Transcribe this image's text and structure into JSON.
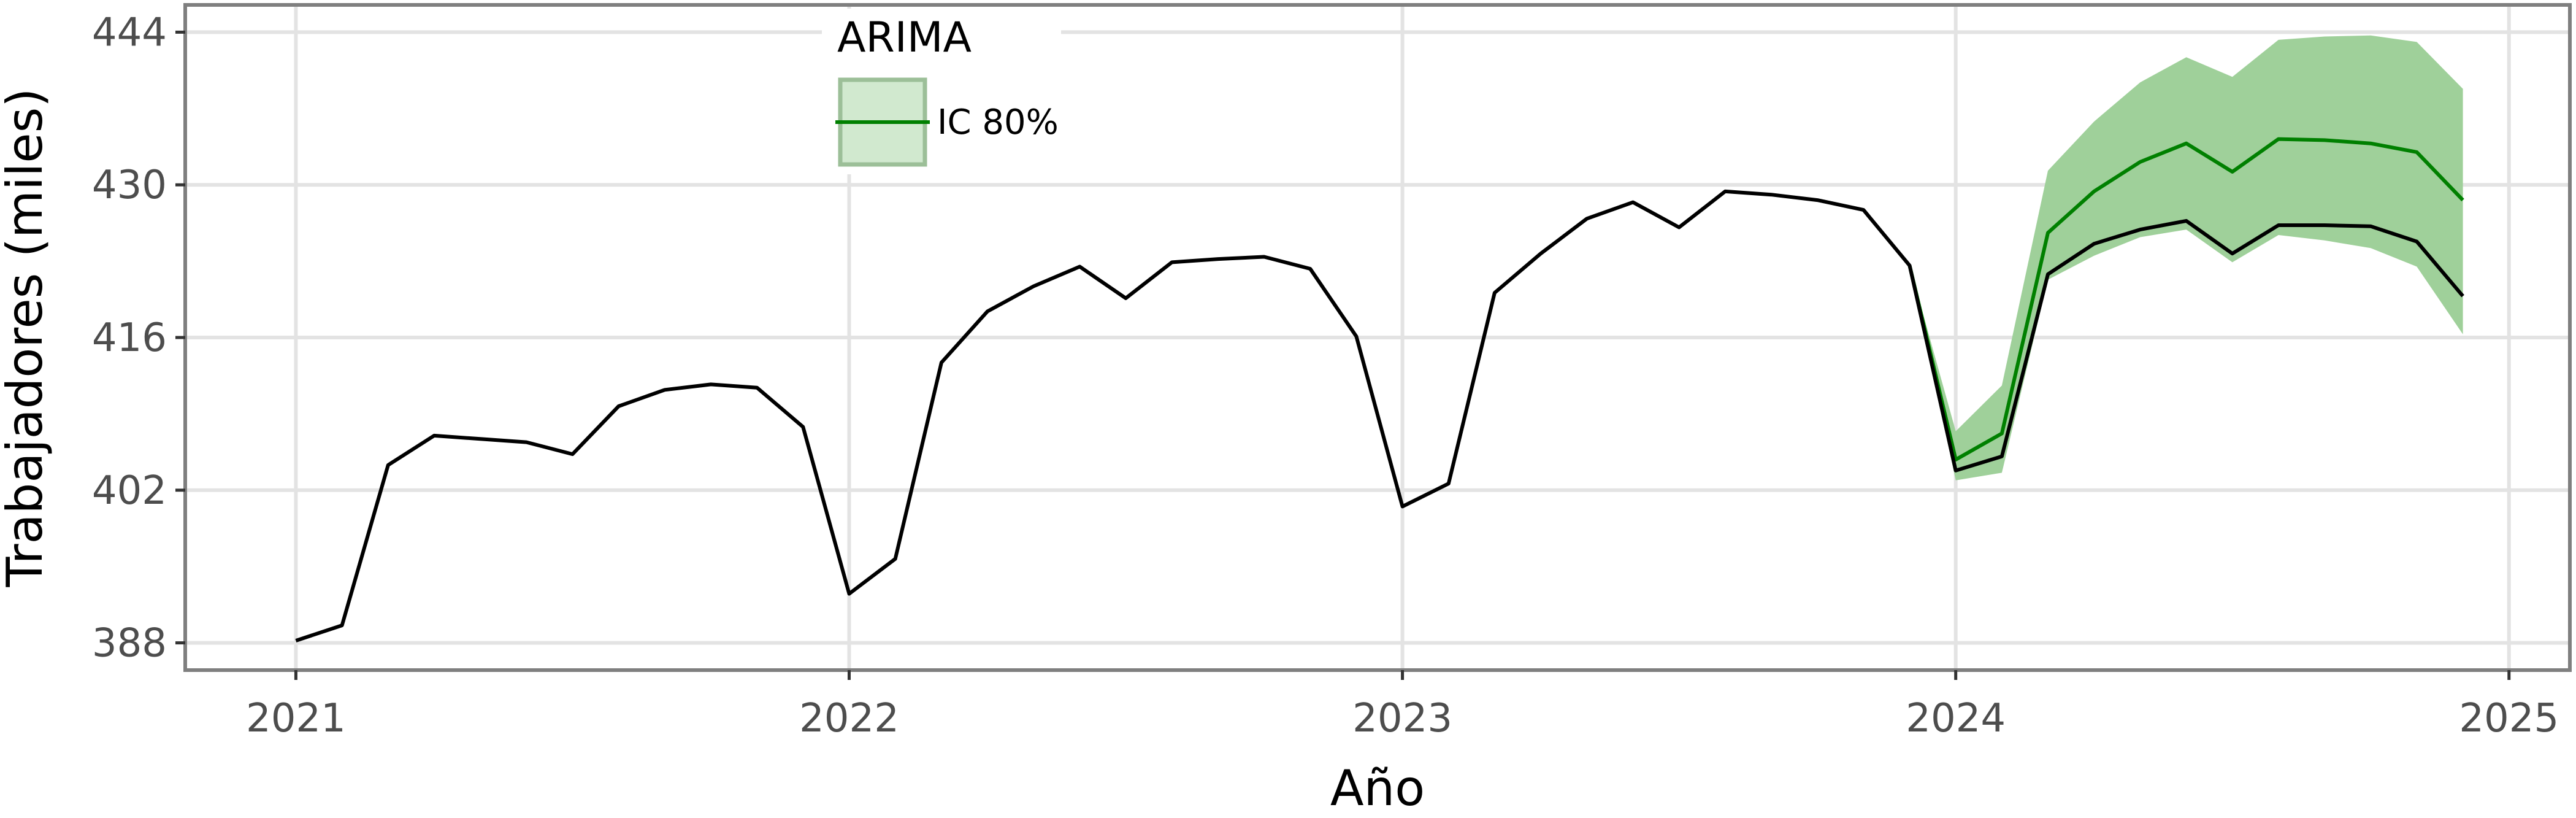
{
  "chart_data": {
    "type": "line",
    "xlabel": "Año",
    "ylabel": "Trabajadores (miles)",
    "xlim": [
      2020.8,
      2025.11
    ],
    "ylim": [
      385.5,
      446.5
    ],
    "x_ticks": [
      2021,
      2022,
      2023,
      2024,
      2025
    ],
    "x_tick_labels": [
      "2021",
      "2022",
      "2023",
      "2024",
      "2025"
    ],
    "y_ticks": [
      388,
      402,
      416,
      430,
      444
    ],
    "y_tick_labels": [
      "388",
      "402",
      "416",
      "430",
      "444"
    ],
    "grid": true,
    "legend": {
      "placement": "top-left",
      "title": "ARIMA",
      "entry": "IC 80%"
    },
    "colors": {
      "history": "#000000",
      "forecast": "#008000",
      "band": "#9fd09a",
      "grid": "#e3e3e3",
      "frame": "#7f7f7f"
    },
    "series": [
      {
        "role": "history",
        "x": [
          "2021-01",
          "2021-02",
          "2021-03",
          "2021-04",
          "2021-05",
          "2021-06",
          "2021-07",
          "2021-08",
          "2021-09",
          "2021-10",
          "2021-11",
          "2021-12",
          "2022-01",
          "2022-02",
          "2022-03",
          "2022-04",
          "2022-05",
          "2022-06",
          "2022-07",
          "2022-08",
          "2022-09",
          "2022-10",
          "2022-11",
          "2022-12",
          "2023-01",
          "2023-02",
          "2023-03",
          "2023-04",
          "2023-05",
          "2023-06",
          "2023-07",
          "2023-08",
          "2023-09",
          "2023-10",
          "2023-11",
          "2023-12",
          "2024-01",
          "2024-02",
          "2024-03",
          "2024-04",
          "2024-05",
          "2024-06",
          "2024-07",
          "2024-08",
          "2024-09",
          "2024-10",
          "2024-11",
          "2024-12"
        ],
        "values": [
          388.2,
          389.6,
          404.3,
          407.0,
          406.7,
          406.4,
          405.3,
          409.7,
          411.2,
          411.7,
          411.4,
          407.8,
          392.5,
          395.7,
          413.7,
          418.4,
          420.7,
          422.5,
          419.6,
          422.9,
          423.2,
          423.4,
          422.3,
          416.1,
          400.5,
          402.6,
          420.1,
          423.7,
          426.9,
          428.4,
          426.1,
          429.4,
          429.1,
          428.6,
          427.7,
          422.6,
          403.8,
          405.1,
          421.8,
          424.6,
          425.9,
          426.7,
          423.7,
          426.3,
          426.3,
          426.2,
          424.8,
          419.8
        ]
      },
      {
        "role": "forecast",
        "x": [
          "2023-12",
          "2024-01",
          "2024-02",
          "2024-03",
          "2024-04",
          "2024-05",
          "2024-06",
          "2024-07",
          "2024-08",
          "2024-09",
          "2024-10",
          "2024-11",
          "2024-12"
        ],
        "values": [
          422.6,
          404.8,
          407.2,
          425.6,
          429.4,
          432.1,
          433.8,
          431.2,
          434.2,
          434.1,
          433.8,
          433.0,
          428.6
        ],
        "lower": [
          422.6,
          402.9,
          403.6,
          421.3,
          423.5,
          425.2,
          425.9,
          422.9,
          425.4,
          424.9,
          424.2,
          422.5,
          416.3
        ],
        "upper": [
          422.6,
          407.4,
          411.6,
          431.3,
          435.8,
          439.4,
          441.7,
          439.9,
          443.3,
          443.6,
          443.7,
          443.1,
          438.8
        ]
      }
    ]
  }
}
